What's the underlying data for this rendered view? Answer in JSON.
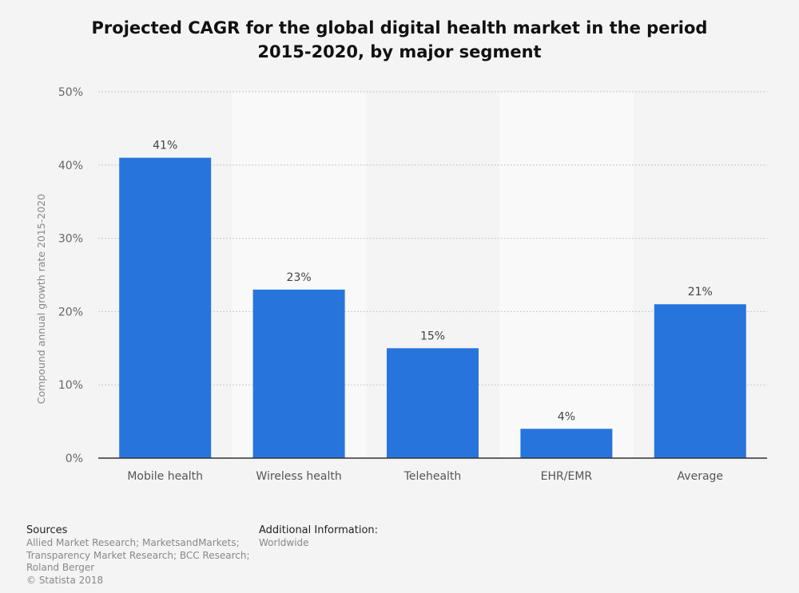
{
  "chart_data": {
    "type": "bar",
    "title": "Projected CAGR for the global digital health market in the period 2015-2020, by major segment",
    "title_lines": [
      "Projected CAGR for the global digital health market in the period",
      "2015-2020, by major segment"
    ],
    "xlabel": "",
    "ylabel": "Compound annual growth rate 2015-2020",
    "categories": [
      "Mobile health",
      "Wireless health",
      "Telehealth",
      "EHR/EMR",
      "Average"
    ],
    "values": [
      41,
      23,
      15,
      4,
      21
    ],
    "data_labels": [
      "41%",
      "23%",
      "15%",
      "4%",
      "21%"
    ],
    "ylim": [
      0,
      50
    ],
    "yticks": [
      0,
      10,
      20,
      30,
      40,
      50
    ],
    "ytick_labels": [
      "0%",
      "10%",
      "20%",
      "30%",
      "40%",
      "50%"
    ],
    "grid": true,
    "legend": "none",
    "bar_color": "#2775dc"
  },
  "footer": {
    "sources_heading": "Sources",
    "sources_lines": [
      "Allied Market Research; MarketsandMarkets;",
      "Transparency Market Research; BCC Research;",
      "Roland Berger"
    ],
    "copyright": "© Statista 2018",
    "additional_heading": "Additional Information:",
    "additional_value": "Worldwide"
  }
}
